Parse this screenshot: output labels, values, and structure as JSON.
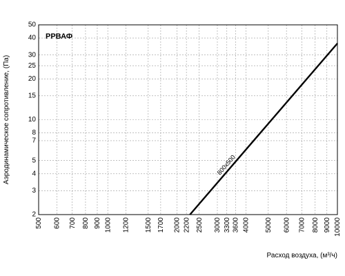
{
  "chart_data": {
    "type": "line",
    "title": "РРВАФ",
    "xlabel": "Расход воздуха, (м³/ч)",
    "ylabel": "Аэродинамическое сопротивление, (Па)",
    "x_scale": "log",
    "y_scale": "log",
    "xlim": [
      500,
      10000
    ],
    "ylim": [
      2,
      50
    ],
    "grid": true,
    "x_ticks": [
      500,
      600,
      700,
      800,
      900,
      1000,
      1200,
      1500,
      1700,
      2000,
      2200,
      2500,
      3000,
      3300,
      3600,
      4000,
      5000,
      6000,
      7000,
      8000,
      9000,
      10000
    ],
    "y_ticks": [
      2,
      3,
      4,
      5,
      7,
      8,
      10,
      15,
      20,
      25,
      30,
      40,
      50
    ],
    "series": [
      {
        "name": "800x500",
        "color": "#000000",
        "x": [
          2280,
          10000
        ],
        "y": [
          2.0,
          36.5
        ]
      }
    ]
  }
}
